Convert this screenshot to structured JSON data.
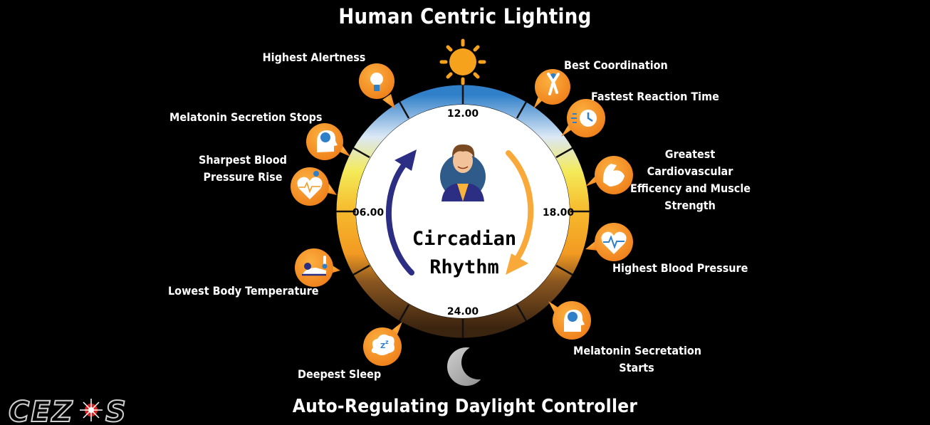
{
  "title": "Human Centric Lighting",
  "footer": "Auto-Regulating Daylight Controller",
  "logo": "CEZOS",
  "center": {
    "line1": "Circadian",
    "line2": "Rhythm"
  },
  "times": {
    "noon": "12.00",
    "evening": "18.00",
    "midnight": "24.00",
    "morning": "06.00"
  },
  "labels": {
    "highest_alertness": "Highest Alertness",
    "best_coordination": "Best Coordination",
    "fastest_reaction": "Fastest Reaction Time",
    "melatonin_stops": "Melatonin Secretion Stops",
    "sharpest_bp_1": "Sharpest Blood",
    "sharpest_bp_2": "Pressure Rise",
    "greatest_cv_1": "Greatest",
    "greatest_cv_2": "Cardiovascular",
    "greatest_cv_3": "Efficency and Muscle",
    "greatest_cv_4": "Strength",
    "highest_bp": "Highest Blood Pressure",
    "lowest_temp": "Lowest Body Temperature",
    "melatonin_starts_1": "Melatonin Secretation",
    "melatonin_starts_2": "Starts",
    "deepest_sleep": "Deepest Sleep"
  },
  "colors": {
    "accent_orange": "#f7941d",
    "ring_blue": "#2f7fc9",
    "ring_yellow": "#f2e52a",
    "ring_brown": "#3b2410",
    "arrow_navy": "#2b2e83",
    "arrow_orange": "#f9a93a"
  },
  "icons": [
    "sun-icon",
    "moon-icon",
    "person-avatar-icon",
    "lightbulb-icon",
    "gymnast-icon",
    "clock-icon",
    "brain-head-icon",
    "heart-pulse-icon",
    "muscle-arm-icon",
    "heart-monitor-icon",
    "thermometer-person-icon",
    "sleep-bubble-icon",
    "brain-head-icon-2"
  ]
}
